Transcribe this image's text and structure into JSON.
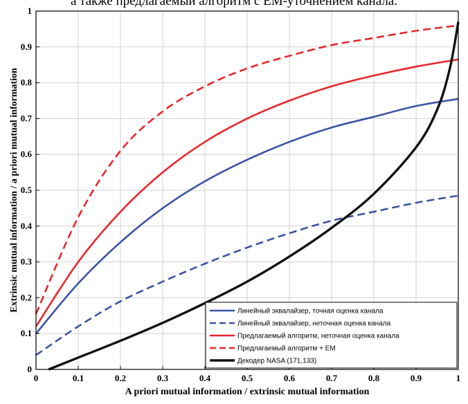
{
  "caption": "а также предлагаемый алгоритм с ЕМ-уточнением канала.",
  "chart_data": {
    "type": "line",
    "xlabel": "A priori mutual information / extrinsic mutual information",
    "ylabel": "Extrinsic mutual information / a priori mutual information",
    "xlim": [
      0,
      1
    ],
    "ylim": [
      0,
      1
    ],
    "xticks": [
      "0",
      "0.1",
      "0.2",
      "0.3",
      "0.4",
      "0.5",
      "0.6",
      "0.7",
      "0.8",
      "0.9",
      "1"
    ],
    "yticks": [
      "0",
      "0.1",
      "0.2",
      "0.3",
      "0.4",
      "0.5",
      "0.6",
      "0.7",
      "0.8",
      "0.9",
      "1"
    ],
    "grid": true,
    "legend_position": "bottom-right",
    "series": [
      {
        "name": "Линейный эквалайзер, точная оценка канала",
        "color": "#3a53a4",
        "dash": "solid",
        "x": [
          0,
          0.1,
          0.2,
          0.3,
          0.4,
          0.5,
          0.6,
          0.7,
          0.8,
          0.9,
          1
        ],
        "y": [
          0.1,
          0.24,
          0.355,
          0.45,
          0.525,
          0.585,
          0.635,
          0.675,
          0.705,
          0.735,
          0.755
        ]
      },
      {
        "name": "Линейный эквалайзер, неточная оценка канала",
        "color": "#3a53a4",
        "dash": "dashed",
        "x": [
          0,
          0.1,
          0.2,
          0.3,
          0.4,
          0.5,
          0.6,
          0.7,
          0.8,
          0.9,
          1
        ],
        "y": [
          0.04,
          0.12,
          0.19,
          0.245,
          0.295,
          0.34,
          0.38,
          0.415,
          0.44,
          0.465,
          0.485
        ]
      },
      {
        "name": "Предлагаемый алгоритм, неточная оценка канала",
        "color": "#e8262b",
        "dash": "solid",
        "x": [
          0,
          0.1,
          0.2,
          0.3,
          0.4,
          0.5,
          0.6,
          0.7,
          0.8,
          0.9,
          1
        ],
        "y": [
          0.12,
          0.3,
          0.44,
          0.55,
          0.635,
          0.7,
          0.75,
          0.79,
          0.82,
          0.845,
          0.865
        ]
      },
      {
        "name": "Предлагаемый алгоритм + EM",
        "color": "#e8262b",
        "dash": "dashed",
        "x": [
          0,
          0.1,
          0.2,
          0.3,
          0.4,
          0.5,
          0.6,
          0.7,
          0.8,
          0.9,
          1
        ],
        "y": [
          0.155,
          0.425,
          0.61,
          0.72,
          0.79,
          0.84,
          0.875,
          0.905,
          0.925,
          0.945,
          0.96
        ]
      },
      {
        "name": "Декодер NASA (171,133)",
        "color": "#111111",
        "dash": "solid",
        "x": [
          0.03,
          0.1,
          0.2,
          0.3,
          0.4,
          0.5,
          0.6,
          0.7,
          0.8,
          0.9,
          0.95,
          0.98,
          1
        ],
        "y": [
          0,
          0.033,
          0.08,
          0.13,
          0.185,
          0.245,
          0.315,
          0.395,
          0.49,
          0.62,
          0.725,
          0.84,
          0.97
        ]
      }
    ]
  }
}
